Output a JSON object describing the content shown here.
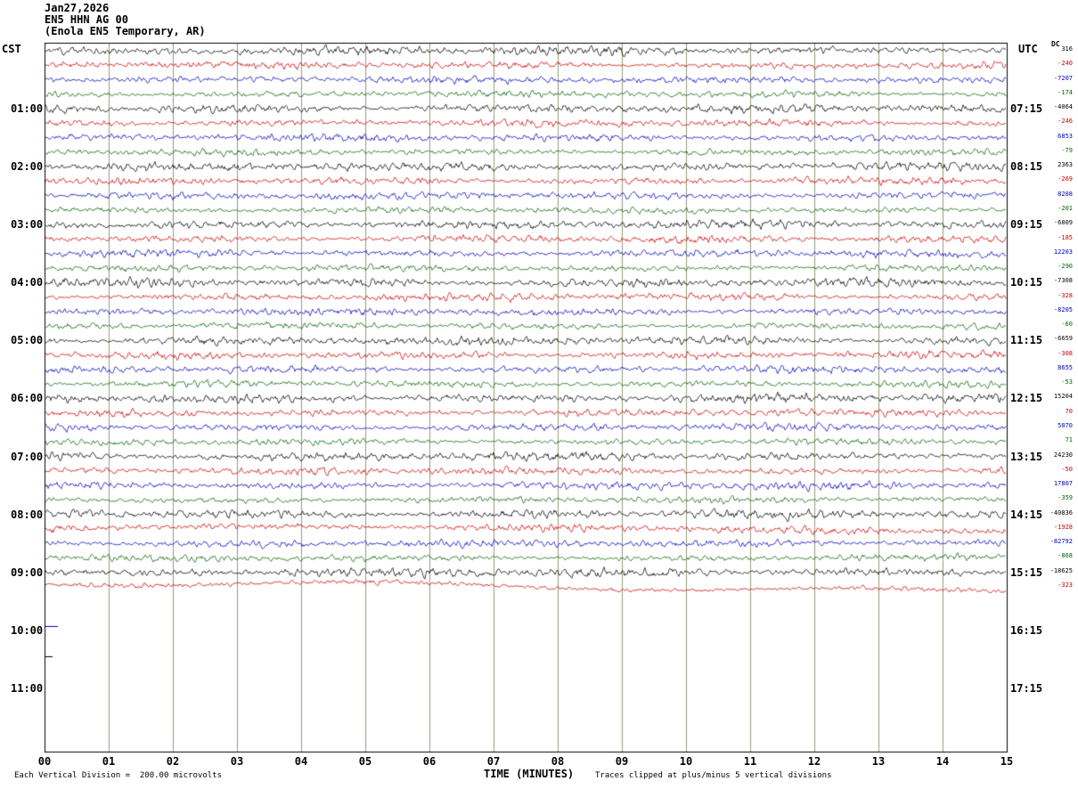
{
  "header": {
    "date": "Jan27,2026",
    "station": "EN5 HHN AG 00",
    "location": "(Enola EN5 Temporary, AR)"
  },
  "axes": {
    "left_timezone": "CST",
    "right_timezone": "UTC",
    "dc_label": "DC",
    "x_axis_title": "TIME (MINUTES)",
    "x_ticks": [
      "00",
      "01",
      "02",
      "03",
      "04",
      "05",
      "06",
      "07",
      "08",
      "09",
      "10",
      "11",
      "12",
      "13",
      "14",
      "15"
    ],
    "left_times": [
      "01:00",
      "02:00",
      "03:00",
      "04:00",
      "05:00",
      "06:00",
      "07:00",
      "08:00",
      "09:00",
      "10:00",
      "11:00"
    ],
    "right_times": [
      "07:15",
      "08:15",
      "09:15",
      "10:15",
      "11:15",
      "12:15",
      "13:15",
      "14:15",
      "15:15",
      "16:15",
      "17:15"
    ]
  },
  "footer": {
    "scale_note": "Each Vertical Division =  200.00 microvolts",
    "clip_note": "Traces clipped at plus/minus 5 vertical divisions"
  },
  "chart_data": {
    "type": "line",
    "station": "EN5 HHN AG 00",
    "description": "Helicorder seismogram, Enola EN5 Temporary, AR, Jan27,2026",
    "x_axis": {
      "label": "TIME (MINUTES)",
      "min": 0,
      "max": 15,
      "minutes_per_line": 15
    },
    "traces_per_hour": 4,
    "trace_colors": [
      "#000000",
      "#cc0000",
      "#0000bb",
      "#006600"
    ],
    "grid_color": "#999980",
    "full_trace_rows": 38,
    "dc_offsets": [
      316,
      -240,
      -7207,
      -174,
      -4064,
      -246,
      6853,
      -79,
      2363,
      -269,
      8208,
      -201,
      -6809,
      -185,
      12203,
      -290,
      -7308,
      -328,
      -8205,
      -60,
      -6659,
      -308,
      8655,
      -53,
      15204,
      70,
      5070,
      71,
      24230,
      -50,
      17807,
      -359,
      -40836,
      -1928,
      -82792,
      -868,
      -18625,
      -323
    ],
    "partial_traces": [
      {
        "color": "#0000bb",
        "y": 703,
        "x": 50,
        "width": 14
      },
      {
        "color": "#000000",
        "y": 737,
        "x": 50,
        "width": 8
      }
    ],
    "scale": "200.00 microvolts per vertical division",
    "clip": "plus/minus 5 vertical divisions"
  }
}
